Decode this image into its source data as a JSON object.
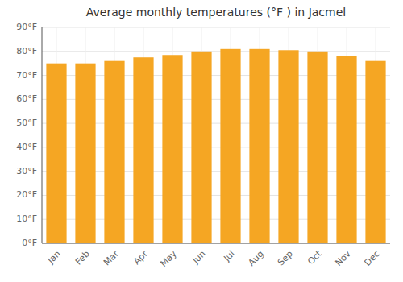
{
  "chart_data": {
    "type": "bar",
    "title": "Average monthly temperatures (°F ) in Jacmel",
    "categories": [
      "Jan",
      "Feb",
      "Mar",
      "Apr",
      "May",
      "Jun",
      "Jul",
      "Aug",
      "Sep",
      "Oct",
      "Nov",
      "Dec"
    ],
    "values": [
      75,
      75,
      76,
      77.5,
      78.5,
      80,
      81,
      81,
      80.5,
      80,
      78,
      76
    ],
    "color": "#F5A623",
    "ylim": [
      0,
      90
    ],
    "yticks": [
      {
        "value": 0,
        "label": "0°F"
      },
      {
        "value": 10,
        "label": "10°F"
      },
      {
        "value": 20,
        "label": "20°F"
      },
      {
        "value": 30,
        "label": "30°F"
      },
      {
        "value": 40,
        "label": "40°F"
      },
      {
        "value": 50,
        "label": "50°F"
      },
      {
        "value": 60,
        "label": "60°F"
      },
      {
        "value": 70,
        "label": "70°F"
      },
      {
        "value": 80,
        "label": "80°F"
      },
      {
        "value": 90,
        "label": "90°F"
      }
    ],
    "grid": true
  }
}
